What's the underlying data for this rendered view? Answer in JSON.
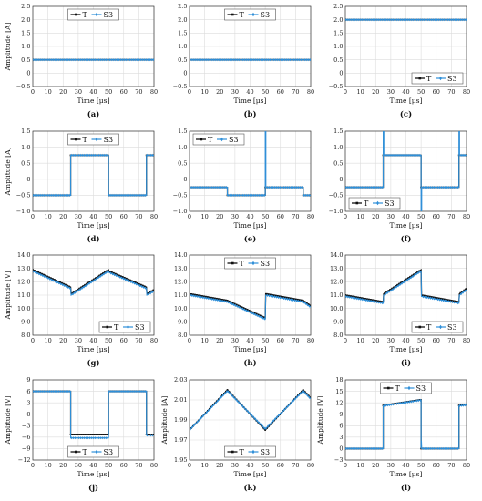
{
  "colors": {
    "T": "#111111",
    "S3": "#2f8fd8",
    "grid": "#dcdcdc"
  },
  "chart_data": [
    {
      "type": "line",
      "panel_label": "(a)",
      "xlabel": "Time [μs]",
      "ylabel": "Amplitude [A]",
      "xlim": [
        0,
        80
      ],
      "ylim": [
        -0.5,
        2.5
      ],
      "yticks": [
        "−0.5",
        "0",
        "0.5",
        "1.0",
        "1.5",
        "2.0",
        "2.5"
      ],
      "xticks": [
        "0",
        "10",
        "20",
        "30",
        "40",
        "50",
        "60",
        "70",
        "80"
      ],
      "grid": true,
      "legend": {
        "placement": "top-center",
        "entries": [
          "T",
          "S3"
        ]
      },
      "series": [
        {
          "name": "T",
          "x": [
            0,
            80
          ],
          "y": [
            0.5,
            0.5
          ]
        },
        {
          "name": "S3",
          "x": [
            0,
            80
          ],
          "y": [
            0.5,
            0.5
          ]
        }
      ]
    },
    {
      "type": "line",
      "panel_label": "(b)",
      "xlabel": "Time [μs]",
      "ylabel": "",
      "xlim": [
        0,
        80
      ],
      "ylim": [
        -0.5,
        2.5
      ],
      "yticks": [
        "−0.5",
        "0",
        "0.5",
        "1.0",
        "1.5",
        "2.0",
        "2.5"
      ],
      "xticks": [
        "0",
        "10",
        "20",
        "30",
        "40",
        "50",
        "60",
        "70",
        "80"
      ],
      "grid": true,
      "legend": {
        "placement": "top-center",
        "entries": [
          "T",
          "S3"
        ]
      },
      "series": [
        {
          "name": "T",
          "x": [
            0,
            80
          ],
          "y": [
            0.5,
            0.5
          ]
        },
        {
          "name": "S3",
          "x": [
            0,
            80
          ],
          "y": [
            0.5,
            0.5
          ]
        }
      ]
    },
    {
      "type": "line",
      "panel_label": "(c)",
      "xlabel": "Time [μs]",
      "ylabel": "",
      "xlim": [
        0,
        80
      ],
      "ylim": [
        -0.5,
        2.5
      ],
      "yticks": [
        "−0.5",
        "0",
        "0.5",
        "1.0",
        "1.5",
        "2.0",
        "2.5"
      ],
      "xticks": [
        "0",
        "10",
        "20",
        "30",
        "40",
        "50",
        "60",
        "70",
        "80"
      ],
      "grid": true,
      "legend": {
        "placement": "bottom-right",
        "entries": [
          "T",
          "S3"
        ]
      },
      "series": [
        {
          "name": "T",
          "x": [
            0,
            80
          ],
          "y": [
            2.0,
            2.0
          ]
        },
        {
          "name": "S3",
          "x": [
            0,
            80
          ],
          "y": [
            2.0,
            2.0
          ]
        }
      ]
    },
    {
      "type": "line",
      "panel_label": "(d)",
      "xlabel": "Time [μs]",
      "ylabel": "Amplitude [A]",
      "xlim": [
        0,
        80
      ],
      "ylim": [
        -1.0,
        1.5
      ],
      "yticks": [
        "−1.0",
        "−0.5",
        "0",
        "0.5",
        "1.0",
        "1.5"
      ],
      "xticks": [
        "0",
        "10",
        "20",
        "30",
        "40",
        "50",
        "60",
        "70",
        "80"
      ],
      "grid": true,
      "legend": {
        "placement": "top-center",
        "entries": [
          "T",
          "S3"
        ]
      },
      "series": [
        {
          "name": "T",
          "x": [
            0,
            25,
            25,
            50,
            50,
            75,
            75,
            80
          ],
          "y": [
            -0.5,
            -0.5,
            0.75,
            0.75,
            -0.5,
            -0.5,
            0.75,
            0.75
          ]
        },
        {
          "name": "S3",
          "x": [
            0,
            25,
            25,
            50,
            50,
            75,
            75,
            80
          ],
          "y": [
            -0.5,
            -0.5,
            0.75,
            0.75,
            -0.5,
            -0.5,
            0.75,
            0.75
          ]
        }
      ]
    },
    {
      "type": "line",
      "panel_label": "(e)",
      "xlabel": "Time [μs]",
      "ylabel": "",
      "xlim": [
        0,
        80
      ],
      "ylim": [
        -1.0,
        1.5
      ],
      "yticks": [
        "−1.0",
        "−0.5",
        "0",
        "0.5",
        "1.0",
        "1.5"
      ],
      "xticks": [
        "0",
        "10",
        "20",
        "30",
        "40",
        "50",
        "60",
        "70",
        "80"
      ],
      "grid": true,
      "legend": {
        "placement": "top-left",
        "entries": [
          "T",
          "S3"
        ]
      },
      "series": [
        {
          "name": "T",
          "x": [
            0,
            25,
            25,
            50,
            50,
            75,
            75,
            80
          ],
          "y": [
            -0.25,
            -0.25,
            -0.5,
            -0.5,
            -0.25,
            -0.25,
            -0.5,
            -0.5
          ]
        },
        {
          "name": "S3",
          "x": [
            0,
            25,
            25,
            50,
            50,
            50.4,
            50.4,
            75,
            75,
            80
          ],
          "y": [
            -0.25,
            -0.25,
            -0.5,
            -0.5,
            1.5,
            1.5,
            -0.25,
            -0.25,
            -0.5,
            -0.5
          ]
        }
      ]
    },
    {
      "type": "line",
      "panel_label": "(f)",
      "xlabel": "Time [μs]",
      "ylabel": "",
      "xlim": [
        0,
        80
      ],
      "ylim": [
        -1.0,
        1.5
      ],
      "yticks": [
        "−1.0",
        "−0.5",
        "0",
        "0.5",
        "1.0",
        "1.5"
      ],
      "xticks": [
        "0",
        "10",
        "20",
        "30",
        "40",
        "50",
        "60",
        "70",
        "80"
      ],
      "grid": true,
      "legend": {
        "placement": "bottom-left",
        "entries": [
          "T",
          "S3"
        ]
      },
      "series": [
        {
          "name": "T",
          "x": [
            0,
            25,
            25,
            50,
            50,
            75,
            75,
            80
          ],
          "y": [
            -0.25,
            -0.25,
            0.75,
            0.75,
            -0.25,
            -0.25,
            0.75,
            0.75
          ]
        },
        {
          "name": "S3",
          "x": [
            0,
            25,
            25,
            25.4,
            25.4,
            50,
            50,
            50.4,
            50.4,
            75,
            75,
            75.4,
            75.4,
            80
          ],
          "y": [
            -0.25,
            -0.25,
            1.5,
            1.5,
            0.75,
            0.75,
            -1.0,
            -1.0,
            -0.25,
            -0.25,
            1.5,
            1.5,
            0.75,
            0.75
          ]
        }
      ]
    },
    {
      "type": "line",
      "panel_label": "(g)",
      "xlabel": "Time [μs]",
      "ylabel": "Amplitude [V]",
      "xlim": [
        0,
        80
      ],
      "ylim": [
        8.0,
        14.0
      ],
      "yticks": [
        "8.0",
        "9.0",
        "10.0",
        "11.0",
        "12.0",
        "13.0",
        "14.0"
      ],
      "xticks": [
        "0",
        "10",
        "20",
        "30",
        "40",
        "50",
        "60",
        "70",
        "80"
      ],
      "grid": true,
      "legend": {
        "placement": "bottom-right",
        "entries": [
          "T",
          "S3"
        ]
      },
      "series": [
        {
          "name": "T",
          "x": [
            0,
            25,
            25.3,
            50,
            50.3,
            75,
            75.3,
            80
          ],
          "y": [
            12.9,
            11.6,
            11.1,
            12.9,
            12.8,
            11.6,
            11.1,
            11.4
          ]
        },
        {
          "name": "S3",
          "x": [
            0,
            25,
            25.3,
            50,
            50.3,
            75,
            75.3,
            80
          ],
          "y": [
            12.8,
            11.5,
            11.0,
            12.8,
            12.7,
            11.5,
            11.0,
            11.3
          ]
        }
      ]
    },
    {
      "type": "line",
      "panel_label": "(h)",
      "xlabel": "Time [μs]",
      "ylabel": "",
      "xlim": [
        0,
        80
      ],
      "ylim": [
        8.0,
        14.0
      ],
      "yticks": [
        "8.0",
        "9.0",
        "10.0",
        "11.0",
        "12.0",
        "13.0",
        "14.0"
      ],
      "xticks": [
        "0",
        "10",
        "20",
        "30",
        "40",
        "50",
        "60",
        "70",
        "80"
      ],
      "grid": true,
      "legend": {
        "placement": "top-center",
        "entries": [
          "T",
          "S3"
        ]
      },
      "series": [
        {
          "name": "T",
          "x": [
            0,
            25,
            50,
            50.3,
            75,
            80
          ],
          "y": [
            11.1,
            10.6,
            9.3,
            11.1,
            10.6,
            10.2
          ]
        },
        {
          "name": "S3",
          "x": [
            0,
            25,
            50,
            50.3,
            75,
            80
          ],
          "y": [
            11.0,
            10.5,
            9.2,
            11.0,
            10.5,
            10.1
          ]
        }
      ]
    },
    {
      "type": "line",
      "panel_label": "(i)",
      "xlabel": "Time [μs]",
      "ylabel": "",
      "xlim": [
        0,
        80
      ],
      "ylim": [
        8.0,
        14.0
      ],
      "yticks": [
        "8.0",
        "9.0",
        "10.0",
        "11.0",
        "12.0",
        "13.0",
        "14.0"
      ],
      "xticks": [
        "0",
        "10",
        "20",
        "30",
        "40",
        "50",
        "60",
        "70",
        "80"
      ],
      "grid": true,
      "legend": {
        "placement": "bottom-right",
        "entries": [
          "T",
          "S3"
        ]
      },
      "series": [
        {
          "name": "T",
          "x": [
            0,
            25,
            25.3,
            50,
            50.3,
            75,
            75.3,
            80
          ],
          "y": [
            11.0,
            10.5,
            11.1,
            12.9,
            11.0,
            10.5,
            11.1,
            11.5
          ]
        },
        {
          "name": "S3",
          "x": [
            0,
            25,
            25.3,
            50,
            50.3,
            75,
            75.3,
            80
          ],
          "y": [
            10.9,
            10.4,
            11.0,
            12.8,
            10.9,
            10.4,
            11.0,
            11.4
          ]
        }
      ]
    },
    {
      "type": "line",
      "panel_label": "(j)",
      "xlabel": "Time [μs]",
      "ylabel": "Amplitude [V]",
      "xlim": [
        0,
        80
      ],
      "ylim": [
        -12,
        9
      ],
      "yticks": [
        "−12",
        "−9",
        "−6",
        "−3",
        "0",
        "3",
        "6",
        "9"
      ],
      "xticks": [
        "0",
        "10",
        "20",
        "30",
        "40",
        "50",
        "60",
        "70",
        "80"
      ],
      "grid": true,
      "legend": {
        "placement": "bottom-center",
        "entries": [
          "T",
          "S3"
        ]
      },
      "series": [
        {
          "name": "T",
          "x": [
            0,
            25,
            25,
            50,
            50,
            75,
            75,
            80
          ],
          "y": [
            6,
            6,
            -5.3,
            -5.3,
            6,
            6,
            -5.3,
            -5.3
          ]
        },
        {
          "name": "S3",
          "x": [
            0,
            25,
            25,
            50,
            50,
            75,
            75,
            80
          ],
          "y": [
            6,
            6,
            -6.2,
            -6.2,
            6,
            6,
            -5.5,
            -5.5
          ]
        }
      ]
    },
    {
      "type": "line",
      "panel_label": "(k)",
      "xlabel": "Time [μs]",
      "ylabel": "Amplitude [A]",
      "xlim": [
        0,
        80
      ],
      "ylim": [
        1.95,
        2.03
      ],
      "yticks": [
        "1.95",
        "1.97",
        "1.99",
        "2.01",
        "2.03"
      ],
      "xticks": [
        "0",
        "10",
        "20",
        "30",
        "40",
        "50",
        "60",
        "70",
        "80"
      ],
      "grid": true,
      "legend": {
        "placement": "bottom-center",
        "entries": [
          "T",
          "S3"
        ]
      },
      "series": [
        {
          "name": "T",
          "x": [
            0,
            25,
            50,
            75,
            80
          ],
          "y": [
            1.98,
            2.02,
            1.98,
            2.02,
            2.012
          ]
        },
        {
          "name": "S3",
          "x": [
            0,
            25,
            50,
            75,
            80
          ],
          "y": [
            1.98,
            2.019,
            1.981,
            2.019,
            2.011
          ]
        }
      ]
    },
    {
      "type": "line",
      "panel_label": "(l)",
      "xlabel": "Time [μs]",
      "ylabel": "Amplitude [V]",
      "xlim": [
        0,
        80
      ],
      "ylim": [
        -3,
        18
      ],
      "yticks": [
        "−3",
        "0",
        "3",
        "6",
        "9",
        "12",
        "15",
        "18"
      ],
      "xticks": [
        "0",
        "10",
        "20",
        "30",
        "40",
        "50",
        "60",
        "70",
        "80"
      ],
      "grid": true,
      "legend": {
        "placement": "top-center",
        "entries": [
          "T",
          "S3"
        ]
      },
      "series": [
        {
          "name": "T",
          "x": [
            0,
            25,
            25,
            50,
            50,
            75,
            75,
            80
          ],
          "y": [
            0,
            0,
            11.3,
            12.8,
            0,
            0,
            11.3,
            11.5
          ]
        },
        {
          "name": "S3",
          "x": [
            0,
            25,
            25,
            50,
            50,
            50.2,
            50.4,
            75,
            75,
            80
          ],
          "y": [
            0,
            0,
            11.2,
            12.7,
            0,
            2.0,
            0,
            0,
            11.2,
            11.4
          ]
        }
      ]
    }
  ]
}
